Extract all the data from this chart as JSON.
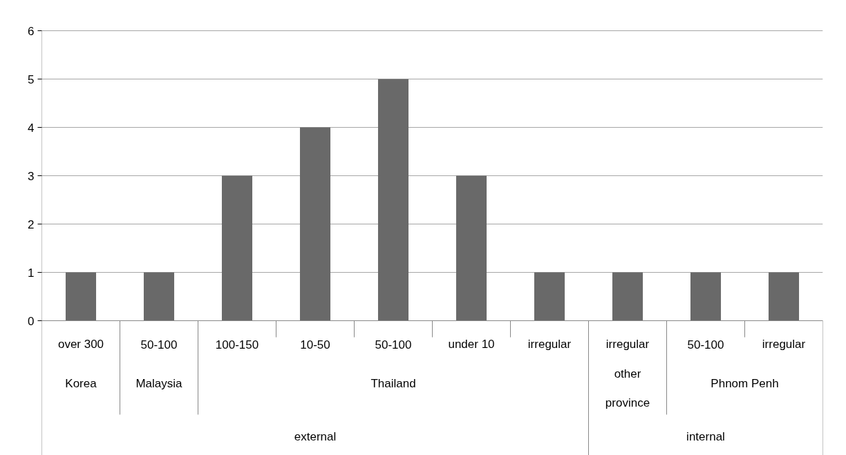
{
  "chart_data": {
    "type": "bar",
    "categories": [
      "over 300",
      "50-100",
      "100-150",
      "10-50",
      "50-100",
      "under 10",
      "irregular",
      "irregular",
      "50-100",
      "irregular"
    ],
    "values": [
      1,
      1,
      3,
      4,
      5,
      3,
      1,
      1,
      1,
      1
    ],
    "color": "#696969",
    "ylim": [
      0,
      6
    ],
    "yticks": [
      0,
      1,
      2,
      3,
      4,
      5,
      6
    ],
    "grid": "y",
    "annotations": [
      "Korea",
      "Malaysia",
      "Thailand",
      "other province",
      "Phnom Penh",
      "external",
      "internal"
    ]
  }
}
